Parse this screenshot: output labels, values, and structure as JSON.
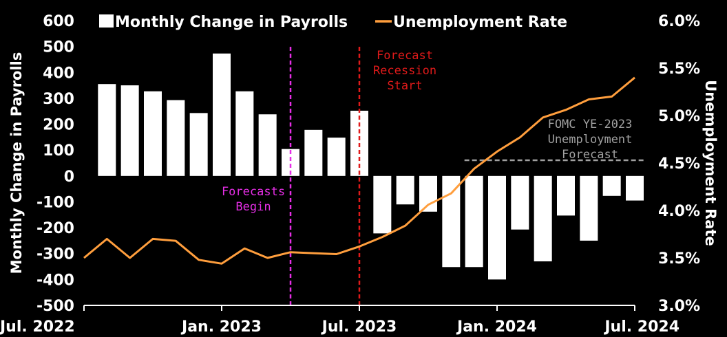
{
  "chart_data": {
    "type": "bar+line",
    "legend": {
      "position": "top",
      "bars_label": "Monthly Change in Payrolls",
      "line_label": "Unemployment Rate"
    },
    "left_axis": {
      "label": "Monthly Change in Payrolls",
      "ylim": [
        -500,
        600
      ],
      "ticks": [
        600,
        500,
        400,
        300,
        200,
        100,
        0,
        -100,
        -200,
        -300,
        -400,
        -500
      ]
    },
    "right_axis": {
      "label": "Unemployment Rate",
      "ylim": [
        3.0,
        6.0
      ],
      "ticks": [
        "6.0%",
        "5.5%",
        "5.0%",
        "4.5%",
        "4.0%",
        "3.5%",
        "3.0%"
      ]
    },
    "x_ticks": [
      {
        "label": "Jul. 2022",
        "date": "2022-07"
      },
      {
        "label": "Jan. 2023",
        "date": "2023-01"
      },
      {
        "label": "Jul. 2023",
        "date": "2023-07"
      },
      {
        "label": "Jan. 2024",
        "date": "2024-01"
      },
      {
        "label": "Jul. 2024",
        "date": "2024-07"
      }
    ],
    "payrolls": [
      {
        "date": "2022-08",
        "value": 355
      },
      {
        "date": "2022-09",
        "value": 350
      },
      {
        "date": "2022-10",
        "value": 327
      },
      {
        "date": "2022-11",
        "value": 293
      },
      {
        "date": "2022-12",
        "value": 243
      },
      {
        "date": "2023-01",
        "value": 473
      },
      {
        "date": "2023-02",
        "value": 327
      },
      {
        "date": "2023-03",
        "value": 238
      },
      {
        "date": "2023-04",
        "value": 104
      },
      {
        "date": "2023-05",
        "value": 178
      },
      {
        "date": "2023-06",
        "value": 148
      },
      {
        "date": "2023-07",
        "value": 252
      },
      {
        "date": "2023-08",
        "value": -222
      },
      {
        "date": "2023-09",
        "value": -110
      },
      {
        "date": "2023-10",
        "value": -138
      },
      {
        "date": "2023-11",
        "value": -352
      },
      {
        "date": "2023-12",
        "value": -352
      },
      {
        "date": "2024-01",
        "value": -400
      },
      {
        "date": "2024-02",
        "value": -207
      },
      {
        "date": "2024-03",
        "value": -330
      },
      {
        "date": "2024-04",
        "value": -153
      },
      {
        "date": "2024-05",
        "value": -250
      },
      {
        "date": "2024-06",
        "value": -77
      },
      {
        "date": "2024-07",
        "value": -95
      }
    ],
    "unemployment": [
      {
        "date": "2022-07",
        "value": 3.5
      },
      {
        "date": "2022-08",
        "value": 3.7
      },
      {
        "date": "2022-09",
        "value": 3.5
      },
      {
        "date": "2022-10",
        "value": 3.7
      },
      {
        "date": "2022-11",
        "value": 3.68
      },
      {
        "date": "2022-12",
        "value": 3.48
      },
      {
        "date": "2023-01",
        "value": 3.44
      },
      {
        "date": "2023-02",
        "value": 3.6
      },
      {
        "date": "2023-03",
        "value": 3.5
      },
      {
        "date": "2023-04",
        "value": 3.56
      },
      {
        "date": "2023-05",
        "value": 3.55
      },
      {
        "date": "2023-06",
        "value": 3.54
      },
      {
        "date": "2023-07",
        "value": 3.62
      },
      {
        "date": "2023-08",
        "value": 3.72
      },
      {
        "date": "2023-09",
        "value": 3.84
      },
      {
        "date": "2023-10",
        "value": 4.06
      },
      {
        "date": "2023-11",
        "value": 4.18
      },
      {
        "date": "2023-12",
        "value": 4.44
      },
      {
        "date": "2024-01",
        "value": 4.62
      },
      {
        "date": "2024-02",
        "value": 4.77
      },
      {
        "date": "2024-03",
        "value": 4.98
      },
      {
        "date": "2024-04",
        "value": 5.06
      },
      {
        "date": "2024-05",
        "value": 5.17
      },
      {
        "date": "2024-06",
        "value": 5.2
      },
      {
        "date": "2024-07",
        "value": 5.4
      }
    ],
    "annotations": [
      {
        "name": "forecasts-begin",
        "date": "2023-04",
        "lines": [
          "Forecasts",
          "Begin"
        ],
        "color": "#e62ee6"
      },
      {
        "name": "forecast-recession-start",
        "date": "2023-07",
        "lines": [
          "Forecast",
          "Recession",
          "Start"
        ],
        "color": "#e01a1a"
      }
    ],
    "reference_line": {
      "lines": [
        "FOMC YE-2023",
        "Unemployment",
        "Forecast"
      ],
      "value": 4.5,
      "from": "2023-12",
      "to": "2024-07",
      "color": "#a0a0a0"
    },
    "colors": {
      "background": "#000000",
      "bars": "#ffffff",
      "line": "#ff9e3d",
      "text": "#ffffff"
    }
  }
}
